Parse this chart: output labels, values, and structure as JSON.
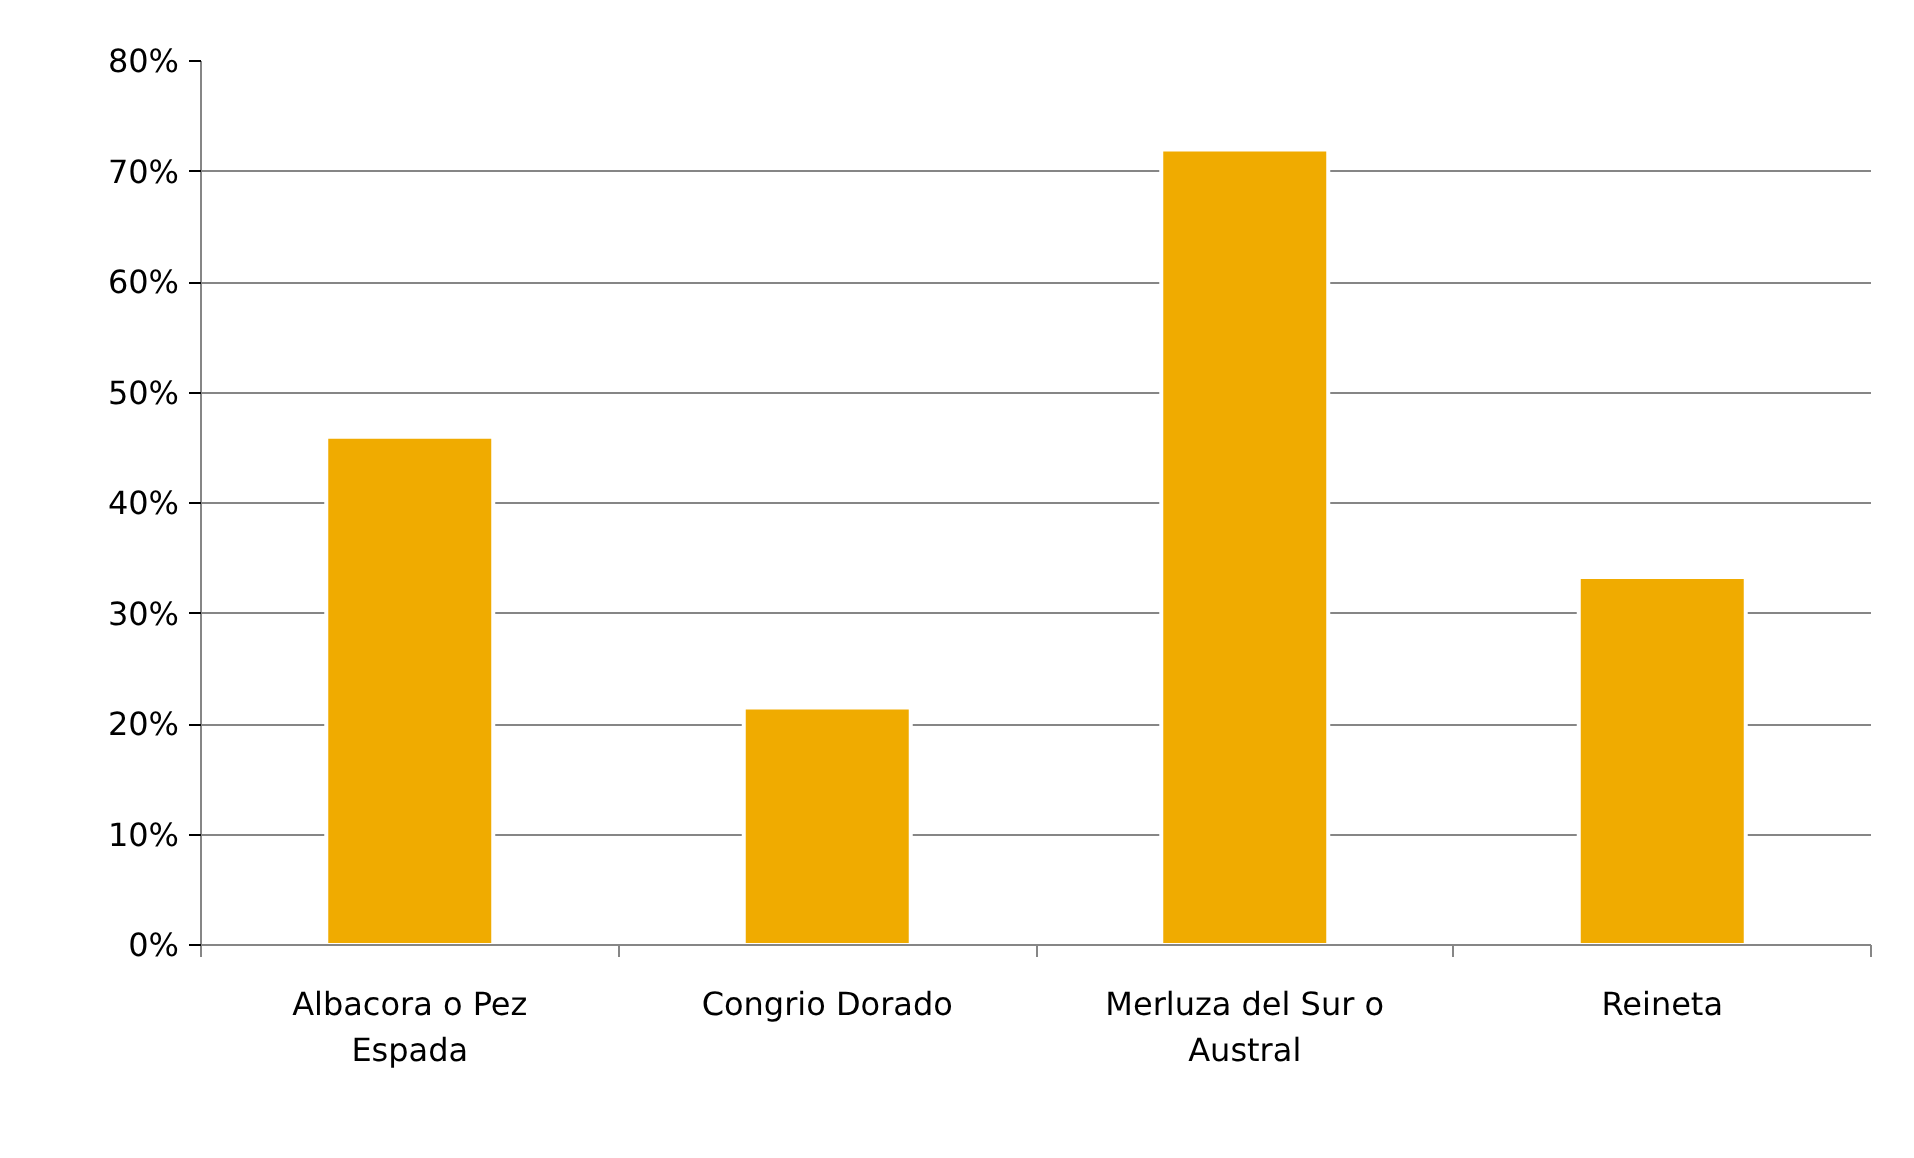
{
  "chart_data": {
    "type": "bar",
    "categories": [
      "Albacora o Pez Espada",
      "Congrio Dorado",
      "Merluza del Sur o Austral",
      "Reineta"
    ],
    "values": [
      46,
      21.5,
      72,
      33.3
    ],
    "color": "#f0ab00",
    "ylim": [
      0,
      80
    ],
    "yticks": [
      {
        "value": 0,
        "label": "0%"
      },
      {
        "value": 10,
        "label": "10%"
      },
      {
        "value": 20,
        "label": "20%"
      },
      {
        "value": 30,
        "label": "30%"
      },
      {
        "value": 40,
        "label": "40%"
      },
      {
        "value": 50,
        "label": "50%"
      },
      {
        "value": 60,
        "label": "60%"
      },
      {
        "value": 70,
        "label": "70%"
      },
      {
        "value": 80,
        "label": "80%"
      }
    ],
    "grid": "y"
  }
}
